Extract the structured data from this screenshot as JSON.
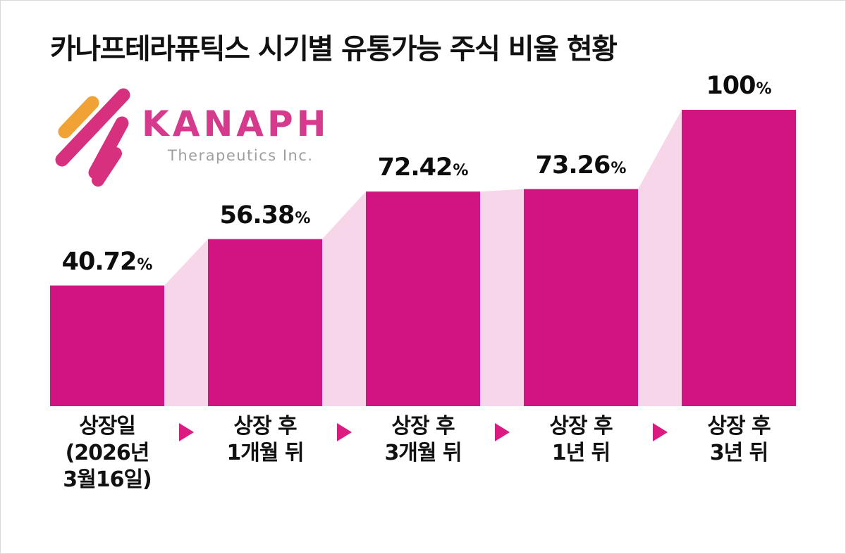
{
  "title": "카나프테라퓨틱스 시기별 유통가능 주식 비율 현황",
  "logo": {
    "name": "KANAPH",
    "subtitle": "Therapeutics Inc."
  },
  "colors": {
    "bar": "#D21480",
    "connector": "#F8D6EA",
    "arrow": "#DB1A82",
    "logo_name": "#D63A8C",
    "logo_orange": "#F0A235",
    "logo_magenta": "#D7307F",
    "logo_subtitle": "#9E9E9E",
    "text": "#111111"
  },
  "chart_data": {
    "type": "bar",
    "title": "카나프테라퓨틱스 시기별 유통가능 주식 비율 현황",
    "unit": "%",
    "categories": [
      "상장일 (2026년 3월16일)",
      "상장 후 1개월 뒤",
      "상장 후 3개월 뒤",
      "상장 후 1년 뒤",
      "상장 후 3년 뒤"
    ],
    "category_lines": [
      [
        "상장일",
        "(2026년",
        "3월16일)"
      ],
      [
        "상장 후",
        "1개월 뒤"
      ],
      [
        "상장 후",
        "3개월 뒤"
      ],
      [
        "상장 후",
        "1년 뒤"
      ],
      [
        "상장 후",
        "3년 뒤"
      ]
    ],
    "values": [
      40.72,
      56.38,
      72.42,
      73.26,
      100
    ],
    "value_labels": [
      "40.72",
      "56.38",
      "72.42",
      "73.26",
      "100"
    ],
    "ylim": [
      0,
      100
    ],
    "grid": false,
    "legend": null,
    "bar_color": "#D21480",
    "connector_color": "#F8D6EA"
  }
}
